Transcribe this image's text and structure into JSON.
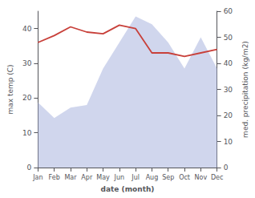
{
  "chart_data": {
    "type": "line",
    "categories": [
      "Jan",
      "Feb",
      "Mar",
      "Apr",
      "May",
      "Jun",
      "Jul",
      "Aug",
      "Sep",
      "Oct",
      "Nov",
      "Dec"
    ],
    "series": [
      {
        "type": "area",
        "color": "#aab4de",
        "axis": "y2",
        "values": [
          25,
          19,
          23,
          24,
          38,
          48,
          58,
          55,
          48,
          38,
          50,
          38
        ]
      },
      {
        "type": "line",
        "color": "#c8403a",
        "values": [
          36,
          38,
          40.5,
          39,
          38.5,
          41,
          40,
          33,
          33,
          32,
          33,
          34
        ]
      }
    ],
    "xlabel": "date (month)",
    "ylabel": "max temp (C)",
    "y2label": "med. precipitation (kg/m2)",
    "ylim": [
      0,
      45
    ],
    "yticks": [
      0,
      10,
      20,
      30,
      40
    ],
    "y2lim": [
      0,
      60
    ],
    "y2ticks": [
      0,
      10,
      20,
      30,
      40,
      50,
      60
    ],
    "grid": false
  }
}
